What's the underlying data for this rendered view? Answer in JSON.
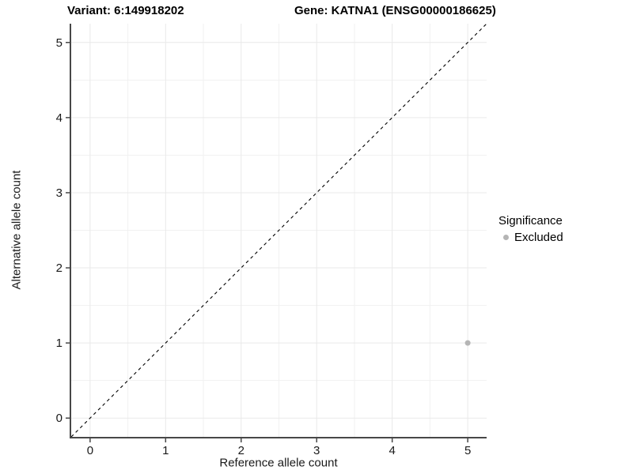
{
  "figure": {
    "title_left": "Variant: 6:149918202",
    "title_right": "Gene: KATNA1 (ENSG00000186625)"
  },
  "chart_data": {
    "type": "scatter",
    "title": "Variant: 6:149918202  /  Gene: KATNA1 (ENSG00000186625)",
    "xlabel": "Reference allele count",
    "ylabel": "Alternative allele count",
    "xlim": [
      -0.25,
      5.25
    ],
    "ylim": [
      -0.25,
      5.25
    ],
    "x_ticks": [
      0,
      1,
      2,
      3,
      4,
      5
    ],
    "y_ticks": [
      0,
      1,
      2,
      3,
      4,
      5
    ],
    "grid": true,
    "points": [
      {
        "x": 5,
        "y": 1,
        "significance": "Excluded"
      }
    ],
    "reference_line": {
      "equation": "y = x",
      "style": "dashed",
      "from": [
        -0.25,
        -0.25
      ],
      "to": [
        5.25,
        5.25
      ]
    },
    "legend": {
      "title": "Significance",
      "position": "right",
      "items": [
        {
          "label": "Excluded",
          "color": "#b5b5b5"
        }
      ]
    },
    "colors": {
      "point": "#b5b5b5",
      "grid_major": "#e9e9e9",
      "grid_minor": "#f1f1f1",
      "axis_line": "#474747",
      "tick_text": "#1a1a1a",
      "reference_line": "#000000",
      "background": "#ffffff"
    }
  }
}
